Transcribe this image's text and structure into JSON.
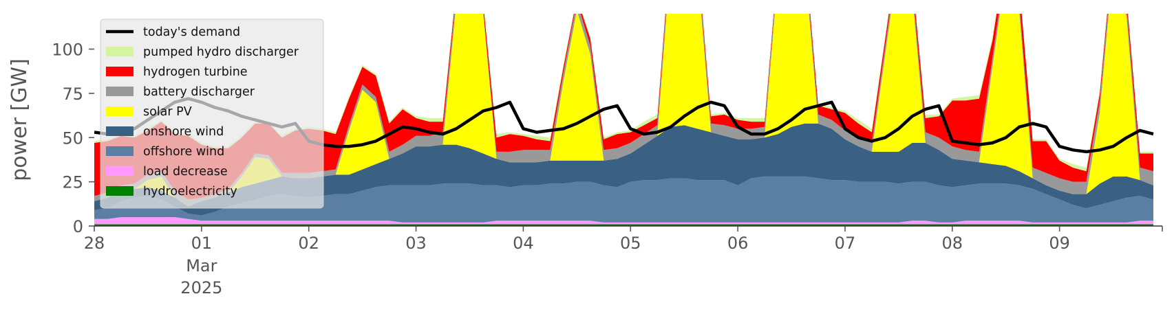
{
  "chart_data": {
    "type": "area",
    "ylabel": "power [GW]",
    "ylim": [
      0,
      120
    ],
    "yticks": [
      0,
      25,
      50,
      75,
      100
    ],
    "x_start": "2025-02-28T00:00",
    "x_end": "2025-03-09T23:00",
    "x_step_hours": 3,
    "xticks": [
      {
        "label": "28",
        "sub": [
          "",
          ""
        ],
        "date": "2025-02-28"
      },
      {
        "label": "01",
        "sub": [
          "Mar",
          "2025"
        ],
        "date": "2025-03-01"
      },
      {
        "label": "02",
        "sub": [
          "",
          ""
        ],
        "date": "2025-03-02"
      },
      {
        "label": "03",
        "sub": [
          "",
          ""
        ],
        "date": "2025-03-03"
      },
      {
        "label": "04",
        "sub": [
          "",
          ""
        ],
        "date": "2025-03-04"
      },
      {
        "label": "05",
        "sub": [
          "",
          ""
        ],
        "date": "2025-03-05"
      },
      {
        "label": "06",
        "sub": [
          "",
          ""
        ],
        "date": "2025-03-06"
      },
      {
        "label": "07",
        "sub": [
          "",
          ""
        ],
        "date": "2025-03-07"
      },
      {
        "label": "08",
        "sub": [
          "",
          ""
        ],
        "date": "2025-03-08"
      },
      {
        "label": "09",
        "sub": [
          "",
          ""
        ],
        "date": "2025-03-09"
      }
    ],
    "grid": false,
    "legend_position": "top-left",
    "series": [
      {
        "name": "hydroelectricity",
        "color": "#008000",
        "values": [
          1,
          1,
          1,
          1,
          1,
          1,
          1,
          1,
          1,
          1,
          1,
          1,
          1,
          1,
          1,
          1,
          1,
          1,
          1,
          1,
          1,
          1,
          1,
          1,
          1,
          1,
          1,
          1,
          1,
          1,
          1,
          1,
          1,
          1,
          1,
          1,
          1,
          1,
          1,
          1,
          1,
          1,
          1,
          1,
          1,
          1,
          1,
          1,
          1,
          1,
          1,
          1,
          1,
          1,
          1,
          1,
          1,
          1,
          1,
          1,
          1,
          1,
          1,
          1,
          1,
          1,
          1,
          1,
          1,
          1,
          1,
          1,
          1,
          1,
          1,
          1,
          1,
          1,
          1,
          1
        ]
      },
      {
        "name": "load decrease",
        "color": "#ff99ff",
        "values": [
          3,
          3,
          4,
          4,
          4,
          4,
          4,
          3,
          2,
          2,
          2,
          2,
          2,
          2,
          2,
          2,
          2,
          2,
          2,
          2,
          2,
          2,
          2,
          1,
          1,
          1,
          1,
          1,
          1,
          1,
          2,
          2,
          2,
          2,
          2,
          2,
          2,
          2,
          1,
          1,
          1,
          1,
          1,
          1,
          1,
          1,
          1,
          1,
          1,
          1,
          1,
          1,
          1,
          1,
          1,
          1,
          1,
          1,
          1,
          1,
          1,
          2,
          2,
          1,
          1,
          2,
          2,
          2,
          2,
          2,
          1,
          1,
          1,
          1,
          1,
          1,
          1,
          1,
          2,
          2
        ]
      },
      {
        "name": "offshore wind",
        "color": "#5b7fa3",
        "values": [
          5,
          6,
          9,
          11,
          12,
          10,
          6,
          3,
          3,
          5,
          8,
          10,
          12,
          14,
          15,
          14,
          13,
          14,
          15,
          15,
          17,
          19,
          20,
          21,
          21,
          21,
          22,
          22,
          22,
          21,
          20,
          19,
          20,
          20,
          21,
          21,
          22,
          22,
          21,
          20,
          23,
          24,
          24,
          25,
          25,
          24,
          24,
          24,
          21,
          25,
          26,
          26,
          26,
          26,
          25,
          24,
          24,
          23,
          23,
          23,
          22,
          22,
          22,
          21,
          20,
          20,
          21,
          21,
          21,
          20,
          19,
          16,
          13,
          10,
          8,
          10,
          12,
          14,
          14,
          12
        ]
      },
      {
        "name": "onshore wind",
        "color": "#3a6184",
        "values": [
          5,
          6,
          6,
          5,
          5,
          5,
          5,
          4,
          8,
          8,
          8,
          9,
          9,
          9,
          10,
          10,
          11,
          11,
          11,
          11,
          12,
          13,
          15,
          18,
          22,
          22,
          22,
          22,
          20,
          18,
          15,
          14,
          13,
          13,
          13,
          13,
          12,
          12,
          14,
          16,
          16,
          20,
          25,
          29,
          30,
          29,
          27,
          25,
          26,
          22,
          22,
          24,
          28,
          30,
          31,
          29,
          23,
          20,
          17,
          17,
          18,
          22,
          22,
          20,
          16,
          14,
          12,
          11,
          10,
          8,
          6,
          5,
          5,
          6,
          8,
          12,
          14,
          12,
          9,
          8
        ]
      },
      {
        "name": "solar PV",
        "color": "#ffff00",
        "values": [
          0,
          0,
          0,
          0,
          4,
          8,
          0,
          0,
          0,
          0,
          0,
          6,
          15,
          12,
          0,
          0,
          0,
          0,
          0,
          25,
          45,
          35,
          0,
          0,
          0,
          0,
          0,
          80,
          100,
          80,
          0,
          0,
          0,
          0,
          0,
          45,
          85,
          60,
          0,
          0,
          0,
          0,
          0,
          95,
          110,
          90,
          0,
          0,
          0,
          0,
          0,
          90,
          115,
          90,
          0,
          0,
          0,
          0,
          0,
          55,
          110,
          85,
          0,
          0,
          0,
          0,
          0,
          55,
          110,
          90,
          0,
          0,
          0,
          0,
          0,
          40,
          120,
          90,
          0,
          0
        ]
      },
      {
        "name": "battery discharger",
        "color": "#999999",
        "values": [
          3,
          3,
          3,
          3,
          3,
          3,
          4,
          4,
          2,
          2,
          2,
          2,
          2,
          2,
          2,
          3,
          3,
          3,
          3,
          3,
          3,
          3,
          4,
          5,
          6,
          6,
          7,
          5,
          3,
          2,
          4,
          6,
          7,
          7,
          6,
          5,
          5,
          5,
          6,
          6,
          6,
          6,
          6,
          6,
          5,
          5,
          5,
          6,
          6,
          6,
          6,
          5,
          5,
          5,
          5,
          5,
          5,
          5,
          5,
          5,
          5,
          5,
          6,
          7,
          7,
          6,
          6,
          5,
          5,
          5,
          6,
          7,
          7,
          7,
          7,
          7,
          6,
          6,
          7,
          8
        ]
      },
      {
        "name": "hydrogen turbine",
        "color": "#ff0000",
        "values": [
          30,
          29,
          28,
          26,
          25,
          28,
          32,
          36,
          30,
          26,
          23,
          20,
          17,
          18,
          20,
          24,
          25,
          23,
          20,
          15,
          10,
          12,
          16,
          20,
          10,
          8,
          6,
          3,
          2,
          4,
          8,
          10,
          8,
          6,
          5,
          3,
          2,
          4,
          6,
          8,
          6,
          5,
          4,
          3,
          2,
          3,
          4,
          6,
          5,
          4,
          3,
          2,
          2,
          3,
          5,
          6,
          10,
          8,
          6,
          4,
          3,
          5,
          8,
          12,
          26,
          28,
          30,
          10,
          5,
          10,
          15,
          18,
          10,
          8,
          6,
          4,
          3,
          5,
          8,
          10
        ]
      },
      {
        "name": "pumped hydro discharger",
        "color": "#d4f5a0",
        "values": [
          1,
          1,
          1,
          1,
          1,
          1,
          1,
          1,
          1,
          1,
          1,
          1,
          1,
          1,
          1,
          1,
          1,
          1,
          1,
          1,
          1,
          1,
          1,
          1,
          1,
          2,
          2,
          2,
          2,
          2,
          2,
          1,
          1,
          2,
          2,
          2,
          1,
          1,
          1,
          1,
          1,
          2,
          2,
          2,
          2,
          2,
          1,
          1,
          1,
          2,
          2,
          2,
          2,
          2,
          1,
          1,
          1,
          2,
          2,
          2,
          2,
          2,
          2,
          1,
          1,
          2,
          2,
          2,
          2,
          2,
          1,
          1,
          1,
          2,
          2,
          2,
          2,
          2,
          1,
          1
        ]
      }
    ],
    "demand": {
      "name": "today's demand",
      "color": "#000000",
      "values": [
        53,
        52,
        52,
        55,
        60,
        65,
        70,
        72,
        70,
        67,
        65,
        62,
        60,
        58,
        56,
        58,
        48,
        46,
        45,
        45,
        46,
        48,
        52,
        56,
        55,
        53,
        52,
        55,
        60,
        65,
        67,
        70,
        55,
        53,
        54,
        55,
        58,
        62,
        66,
        68,
        55,
        52,
        53,
        56,
        62,
        67,
        70,
        68,
        56,
        52,
        52,
        55,
        60,
        66,
        68,
        70,
        55,
        50,
        48,
        50,
        55,
        62,
        66,
        68,
        48,
        47,
        46,
        47,
        50,
        56,
        58,
        56,
        45,
        43,
        42,
        43,
        45,
        50,
        54,
        52
      ]
    },
    "legend": [
      {
        "label": "today's demand",
        "color": "#000000",
        "kind": "line"
      },
      {
        "label": "pumped hydro discharger",
        "color": "#d4f5a0",
        "kind": "patch"
      },
      {
        "label": "hydrogen turbine",
        "color": "#ff0000",
        "kind": "patch"
      },
      {
        "label": "battery discharger",
        "color": "#999999",
        "kind": "patch"
      },
      {
        "label": "solar PV",
        "color": "#ffff00",
        "kind": "patch"
      },
      {
        "label": "onshore wind",
        "color": "#3a6184",
        "kind": "patch"
      },
      {
        "label": "offshore wind",
        "color": "#5b7fa3",
        "kind": "patch"
      },
      {
        "label": "load decrease",
        "color": "#ff99ff",
        "kind": "patch"
      },
      {
        "label": "hydroelectricity",
        "color": "#008000",
        "kind": "patch"
      }
    ]
  }
}
